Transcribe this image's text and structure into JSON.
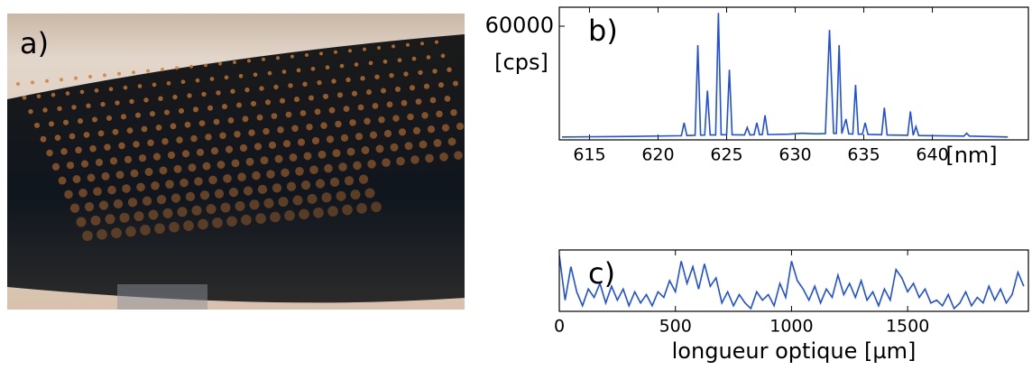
{
  "photo_label": "a)",
  "chart_data": [
    {
      "type": "line",
      "panel_label": "b)",
      "y_label_top": "60000",
      "ylabel": "[cps]",
      "xlabel": "[nm]",
      "color": "#1f4fe0",
      "x": [
        613,
        618,
        621.7,
        621.9,
        622.1,
        622.7,
        622.9,
        623.1,
        623.4,
        623.6,
        623.8,
        624.2,
        624.4,
        624.6,
        625.0,
        625.2,
        625.4,
        626.3,
        626.5,
        626.7,
        627.0,
        627.2,
        627.4,
        627.6,
        627.8,
        628.0,
        629.5,
        630.5,
        631.5,
        632.2,
        632.5,
        632.8,
        633.0,
        633.2,
        633.4,
        633.7,
        633.9,
        634.2,
        634.4,
        634.6,
        634.9,
        635.1,
        635.3,
        636.3,
        636.5,
        636.7,
        638.2,
        638.4,
        638.6,
        638.8,
        639.0,
        642.3,
        642.5,
        642.7,
        645.5
      ],
      "values": [
        1500,
        1800,
        2200,
        9000,
        2300,
        2400,
        50000,
        2500,
        2500,
        26000,
        2600,
        2600,
        67000,
        2700,
        2700,
        37000,
        2700,
        2600,
        6500,
        2600,
        2700,
        9000,
        2700,
        2800,
        13000,
        2800,
        3000,
        3500,
        3200,
        3300,
        58000,
        3400,
        3400,
        50000,
        3300,
        11000,
        3200,
        3100,
        29000,
        3000,
        3000,
        9000,
        2900,
        2700,
        17000,
        2600,
        2400,
        15000,
        2400,
        7000,
        2300,
        2000,
        3500,
        2000,
        1500
      ],
      "xlim": [
        612.8,
        647
      ],
      "xticks": [
        615,
        620,
        625,
        630,
        635,
        640
      ],
      "ylim": [
        0,
        70000
      ]
    },
    {
      "type": "line",
      "panel_label": "c)",
      "xlabel": "longueur optique [µm]",
      "color": "#1f4fe0",
      "x": [
        0,
        25,
        50,
        75,
        100,
        125,
        150,
        175,
        200,
        225,
        250,
        275,
        300,
        325,
        350,
        375,
        400,
        425,
        450,
        475,
        500,
        525,
        550,
        575,
        600,
        625,
        650,
        675,
        700,
        725,
        750,
        775,
        800,
        825,
        850,
        875,
        900,
        925,
        950,
        975,
        1000,
        1025,
        1050,
        1075,
        1100,
        1125,
        1150,
        1175,
        1200,
        1225,
        1250,
        1275,
        1300,
        1325,
        1350,
        1375,
        1400,
        1425,
        1450,
        1475,
        1500,
        1525,
        1550,
        1575,
        1600,
        1625,
        1650,
        1675,
        1700,
        1725,
        1750,
        1775,
        1800,
        1825,
        1850,
        1875,
        1900,
        1925,
        1950,
        1975,
        2000
      ],
      "values": [
        0.95,
        0.15,
        0.75,
        0.3,
        0.05,
        0.35,
        0.2,
        0.45,
        0.1,
        0.4,
        0.15,
        0.35,
        0.05,
        0.3,
        0.1,
        0.25,
        0.05,
        0.3,
        0.2,
        0.5,
        0.3,
        0.85,
        0.45,
        0.75,
        0.35,
        0.8,
        0.4,
        0.55,
        0.1,
        0.3,
        0.05,
        0.25,
        0.1,
        0.0,
        0.3,
        0.15,
        0.25,
        0.05,
        0.45,
        0.2,
        0.85,
        0.5,
        0.35,
        0.15,
        0.4,
        0.1,
        0.35,
        0.2,
        0.6,
        0.25,
        0.45,
        0.2,
        0.5,
        0.15,
        0.3,
        0.05,
        0.35,
        0.15,
        0.7,
        0.55,
        0.3,
        0.45,
        0.2,
        0.35,
        0.1,
        0.15,
        0.05,
        0.25,
        0.0,
        0.1,
        0.3,
        0.05,
        0.2,
        0.1,
        0.4,
        0.15,
        0.35,
        0.1,
        0.25,
        0.65,
        0.4
      ],
      "xlim": [
        0,
        2020
      ],
      "xticks": [
        0,
        500,
        1000,
        1500
      ],
      "ylim": [
        -0.05,
        1.05
      ]
    }
  ]
}
